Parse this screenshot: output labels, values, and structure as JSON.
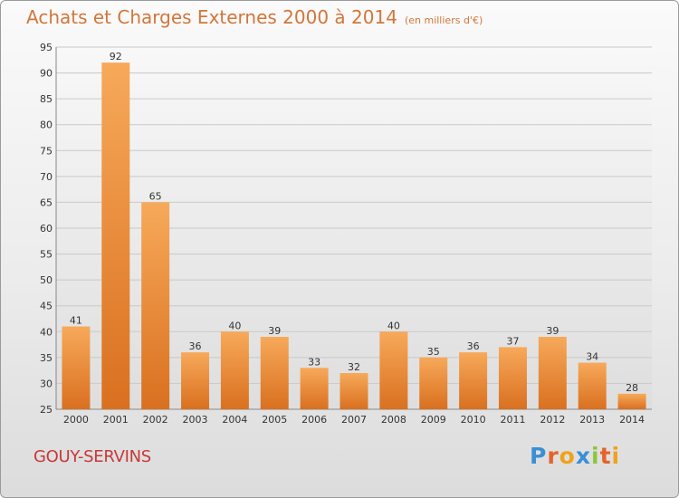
{
  "chart_data": {
    "type": "bar",
    "title": "Achats et Charges Externes 2000 à 2014",
    "subtitle": "(en milliers d'€)",
    "categories": [
      "2000",
      "2001",
      "2002",
      "2003",
      "2004",
      "2005",
      "2006",
      "2007",
      "2008",
      "2009",
      "2010",
      "2011",
      "2012",
      "2013",
      "2014"
    ],
    "values": [
      41,
      92,
      65,
      36,
      40,
      39,
      33,
      32,
      40,
      35,
      36,
      37,
      39,
      34,
      28
    ],
    "ylim": [
      25,
      95
    ],
    "yticks": [
      25,
      30,
      35,
      40,
      45,
      50,
      55,
      60,
      65,
      70,
      75,
      80,
      85,
      90,
      95
    ],
    "grid": true,
    "bar_color": "#e8893a"
  },
  "commune": "GOUY-SERVINS",
  "logo": {
    "text": "Proxiti",
    "colors": [
      "#3a8fd6",
      "#e5632a",
      "#f0a21e",
      "#3a8fd6",
      "#8cc63f",
      "#e5632a",
      "#f0a21e"
    ]
  }
}
